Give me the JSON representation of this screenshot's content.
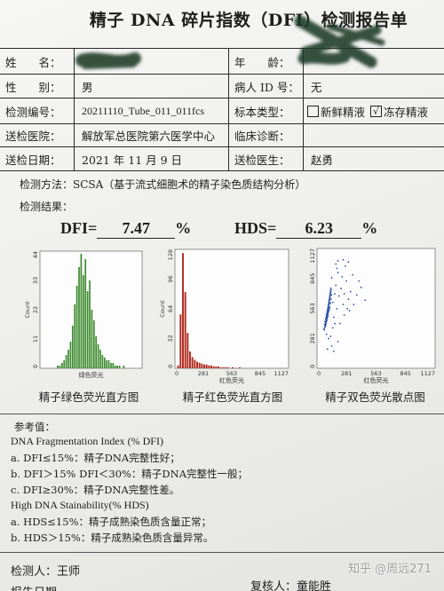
{
  "report": {
    "title": "精子 DNA 碎片指数（DFI）检测报告单",
    "fields": {
      "name_label": "姓　　名：",
      "age_label": "年　　龄：",
      "sex_label": "性　　别：",
      "sex_value": "男",
      "patient_id_label": "病人 ID 号：",
      "patient_id_value": "无",
      "test_no_label": "检测编号：",
      "test_no_value": "20211110_Tube_011_011fcs",
      "sample_type_label": "标本类型：",
      "sample_options": [
        {
          "label": "新鲜精液",
          "checked": false
        },
        {
          "label": "冻存精液",
          "checked": true
        }
      ],
      "check_mark": "√",
      "hospital_label": "送检医院：",
      "hospital_value": "解放军总医院第六医学中心",
      "diagnosis_label": "临床诊断：",
      "diagnosis_value": "",
      "date_label": "送检日期：",
      "date_value": "2021 年 11 月 9 日",
      "doctor_label": "送检医生：",
      "doctor_value": "赵勇"
    },
    "method": "检测方法：SCSA（基于流式细胞术的精子染色质结构分析）",
    "results_heading": "检测结果：",
    "dfi": {
      "label": "DFI=",
      "value": "7.47",
      "unit": "%"
    },
    "hds": {
      "label": "HDS=",
      "value": "6.23",
      "unit": "%"
    },
    "reference": {
      "heading": "参考值：",
      "dfi_title": "DNA Fragmentation Index (% DFI)",
      "dfi_items": [
        "a. DFI≤15%：精子DNA完整性好；",
        "b. DFI＞15% DFI＜30%：精子DNA完整性一般；",
        "c. DFI≥30%：精子DNA完整性差。"
      ],
      "hds_title": "High DNA Stainability(% HDS)",
      "hds_items": [
        "a. HDS≤15%：精子成熟染色质含量正常；",
        "b. HDS＞15%：精子成熟染色质含量异常。"
      ]
    },
    "footer": {
      "inspector": "检测人：王师",
      "reviewer": "复核人：童能胜",
      "report_date_label": "报告日期"
    },
    "watermark": "知乎 @周远271",
    "redaction_color": "#1d3b26"
  },
  "chart_data": [
    {
      "type": "bar",
      "title": "精子绿色荧光直方图",
      "xlabel": "绿色荧光",
      "ylabel": "Count",
      "xlim": [
        0,
        1127
      ],
      "ylim": [
        0,
        44
      ],
      "xticks": [],
      "yticks": [
        "0",
        "11",
        "22",
        "33",
        "44"
      ],
      "x_start": 0,
      "bin_width": 23.5,
      "values": [
        0,
        0,
        0,
        0,
        0,
        0,
        0,
        0,
        1,
        1,
        2,
        3,
        5,
        7,
        10,
        16,
        24,
        31,
        38,
        43,
        35,
        41,
        29,
        33,
        22,
        18,
        12,
        9,
        7,
        5,
        4,
        3,
        3,
        2,
        2,
        1,
        1,
        1,
        0,
        1,
        0,
        0,
        0,
        0,
        0,
        0,
        0,
        0
      ],
      "color": "#3d8b2e"
    },
    {
      "type": "bar",
      "title": "精子红色荧光直方图",
      "xlabel": "红色荧光",
      "ylabel": "Count",
      "xlim": [
        0,
        1127
      ],
      "ylim": [
        0,
        128
      ],
      "xticks": [
        "0",
        "281",
        "563",
        "845",
        "1127"
      ],
      "yticks": [
        "0",
        "32",
        "64",
        "96",
        "128"
      ],
      "x_start": 0,
      "bin_width": 23.5,
      "values": [
        0,
        3,
        58,
        124,
        82,
        38,
        18,
        12,
        9,
        7,
        6,
        5,
        4,
        4,
        3,
        3,
        2,
        2,
        2,
        1,
        1,
        1,
        1,
        0,
        1,
        0,
        0,
        1,
        0,
        0,
        0,
        0,
        0,
        0,
        0,
        0,
        0,
        0,
        0,
        0,
        0,
        0,
        0,
        0,
        0,
        0,
        0,
        0
      ],
      "color": "#b22e22"
    },
    {
      "type": "scatter",
      "title": "精子双色荧光散点图",
      "xlabel": "红色荧光",
      "ylabel": "",
      "xlim": [
        0,
        1127
      ],
      "ylim": [
        0,
        1127
      ],
      "xticks": [
        "0",
        "281",
        "563",
        "845",
        "1127"
      ],
      "yticks": [
        "0",
        "281",
        "563",
        "845",
        "1127"
      ],
      "points": [
        [
          70,
          360
        ],
        [
          66,
          372
        ],
        [
          74,
          385
        ],
        [
          78,
          401
        ],
        [
          72,
          410
        ],
        [
          80,
          420
        ],
        [
          84,
          432
        ],
        [
          76,
          440
        ],
        [
          88,
          451
        ],
        [
          82,
          462
        ],
        [
          90,
          470
        ],
        [
          86,
          478
        ],
        [
          94,
          489
        ],
        [
          90,
          498
        ],
        [
          98,
          505
        ],
        [
          92,
          512
        ],
        [
          100,
          520
        ],
        [
          96,
          531
        ],
        [
          104,
          540
        ],
        [
          100,
          548
        ],
        [
          108,
          556
        ],
        [
          102,
          563
        ],
        [
          110,
          572
        ],
        [
          106,
          580
        ],
        [
          112,
          590
        ],
        [
          108,
          598
        ],
        [
          116,
          606
        ],
        [
          112,
          615
        ],
        [
          118,
          624
        ],
        [
          114,
          632
        ],
        [
          120,
          640
        ],
        [
          116,
          650
        ],
        [
          124,
          660
        ],
        [
          120,
          668
        ],
        [
          126,
          678
        ],
        [
          122,
          688
        ],
        [
          130,
          698
        ],
        [
          126,
          706
        ],
        [
          132,
          716
        ],
        [
          128,
          728
        ],
        [
          136,
          740
        ],
        [
          130,
          752
        ],
        [
          88,
          440
        ],
        [
          96,
          470
        ],
        [
          104,
          500
        ],
        [
          110,
          530
        ],
        [
          118,
          560
        ],
        [
          84,
          410
        ],
        [
          94,
          455
        ],
        [
          102,
          485
        ],
        [
          80,
          395
        ],
        [
          86,
          425
        ],
        [
          92,
          445
        ],
        [
          98,
          480
        ],
        [
          106,
          515
        ],
        [
          114,
          545
        ],
        [
          122,
          575
        ],
        [
          128,
          610
        ],
        [
          134,
          650
        ],
        [
          138,
          690
        ],
        [
          150,
          620
        ],
        [
          170,
          700
        ],
        [
          190,
          560
        ],
        [
          210,
          680
        ],
        [
          160,
          480
        ],
        [
          230,
          750
        ],
        [
          250,
          600
        ],
        [
          280,
          820
        ],
        [
          300,
          650
        ],
        [
          320,
          720
        ],
        [
          200,
          900
        ],
        [
          240,
          860
        ],
        [
          180,
          780
        ],
        [
          350,
          600
        ],
        [
          380,
          690
        ],
        [
          420,
          760
        ],
        [
          460,
          640
        ],
        [
          260,
          500
        ],
        [
          290,
          560
        ],
        [
          340,
          880
        ],
        [
          220,
          420
        ],
        [
          150,
          380
        ],
        [
          170,
          420
        ],
        [
          310,
          540
        ],
        [
          400,
          820
        ],
        [
          140,
          850
        ],
        [
          130,
          300
        ],
        [
          110,
          280
        ],
        [
          90,
          320
        ],
        [
          260,
          700
        ],
        [
          100,
          180
        ],
        [
          140,
          210
        ],
        [
          200,
          250
        ],
        [
          160,
          160
        ],
        [
          180,
          980
        ],
        [
          200,
          1010
        ],
        [
          190,
          940
        ],
        [
          270,
          960
        ],
        [
          300,
          1000
        ],
        [
          250,
          1020
        ]
      ],
      "color": "#2c4fa8"
    }
  ]
}
